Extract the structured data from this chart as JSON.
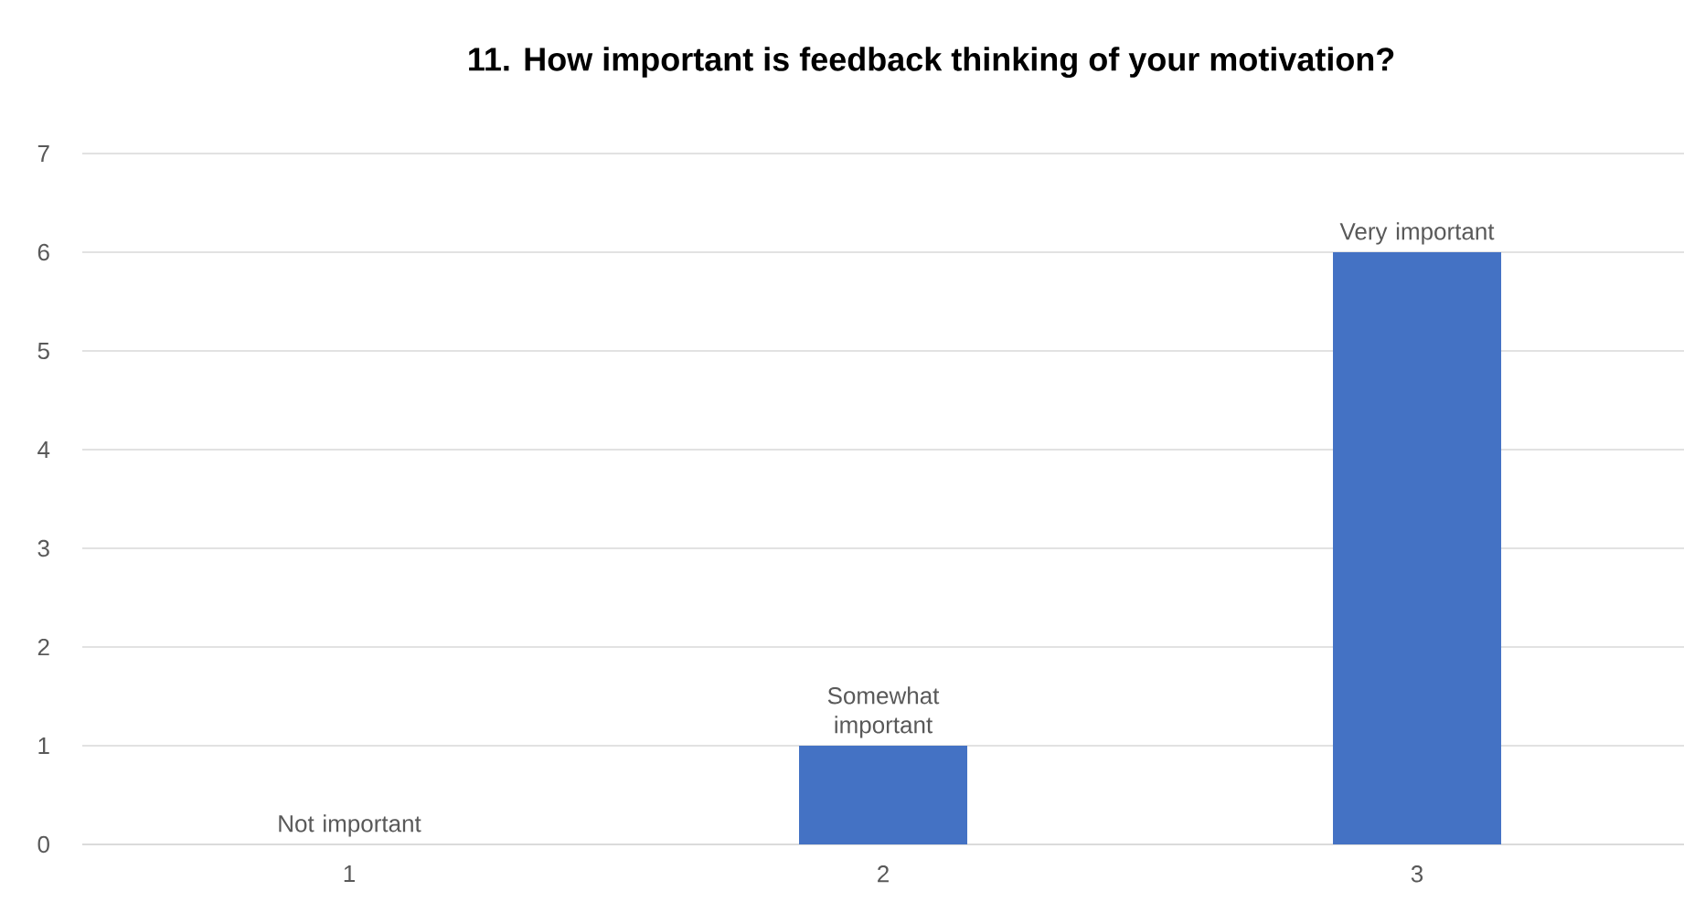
{
  "chart_data": {
    "type": "bar",
    "title": "11. How important is feedback thinking of your motivation?",
    "categories": [
      "1",
      "2",
      "3"
    ],
    "values": [
      0,
      1,
      6
    ],
    "value_labels": [
      "Not important",
      "Somewhat important",
      "Very important"
    ],
    "color": "#4472c4",
    "ylim": [
      0,
      7
    ],
    "yticks": [
      0,
      1,
      2,
      3,
      4,
      5,
      6,
      7
    ],
    "grid": "y"
  }
}
